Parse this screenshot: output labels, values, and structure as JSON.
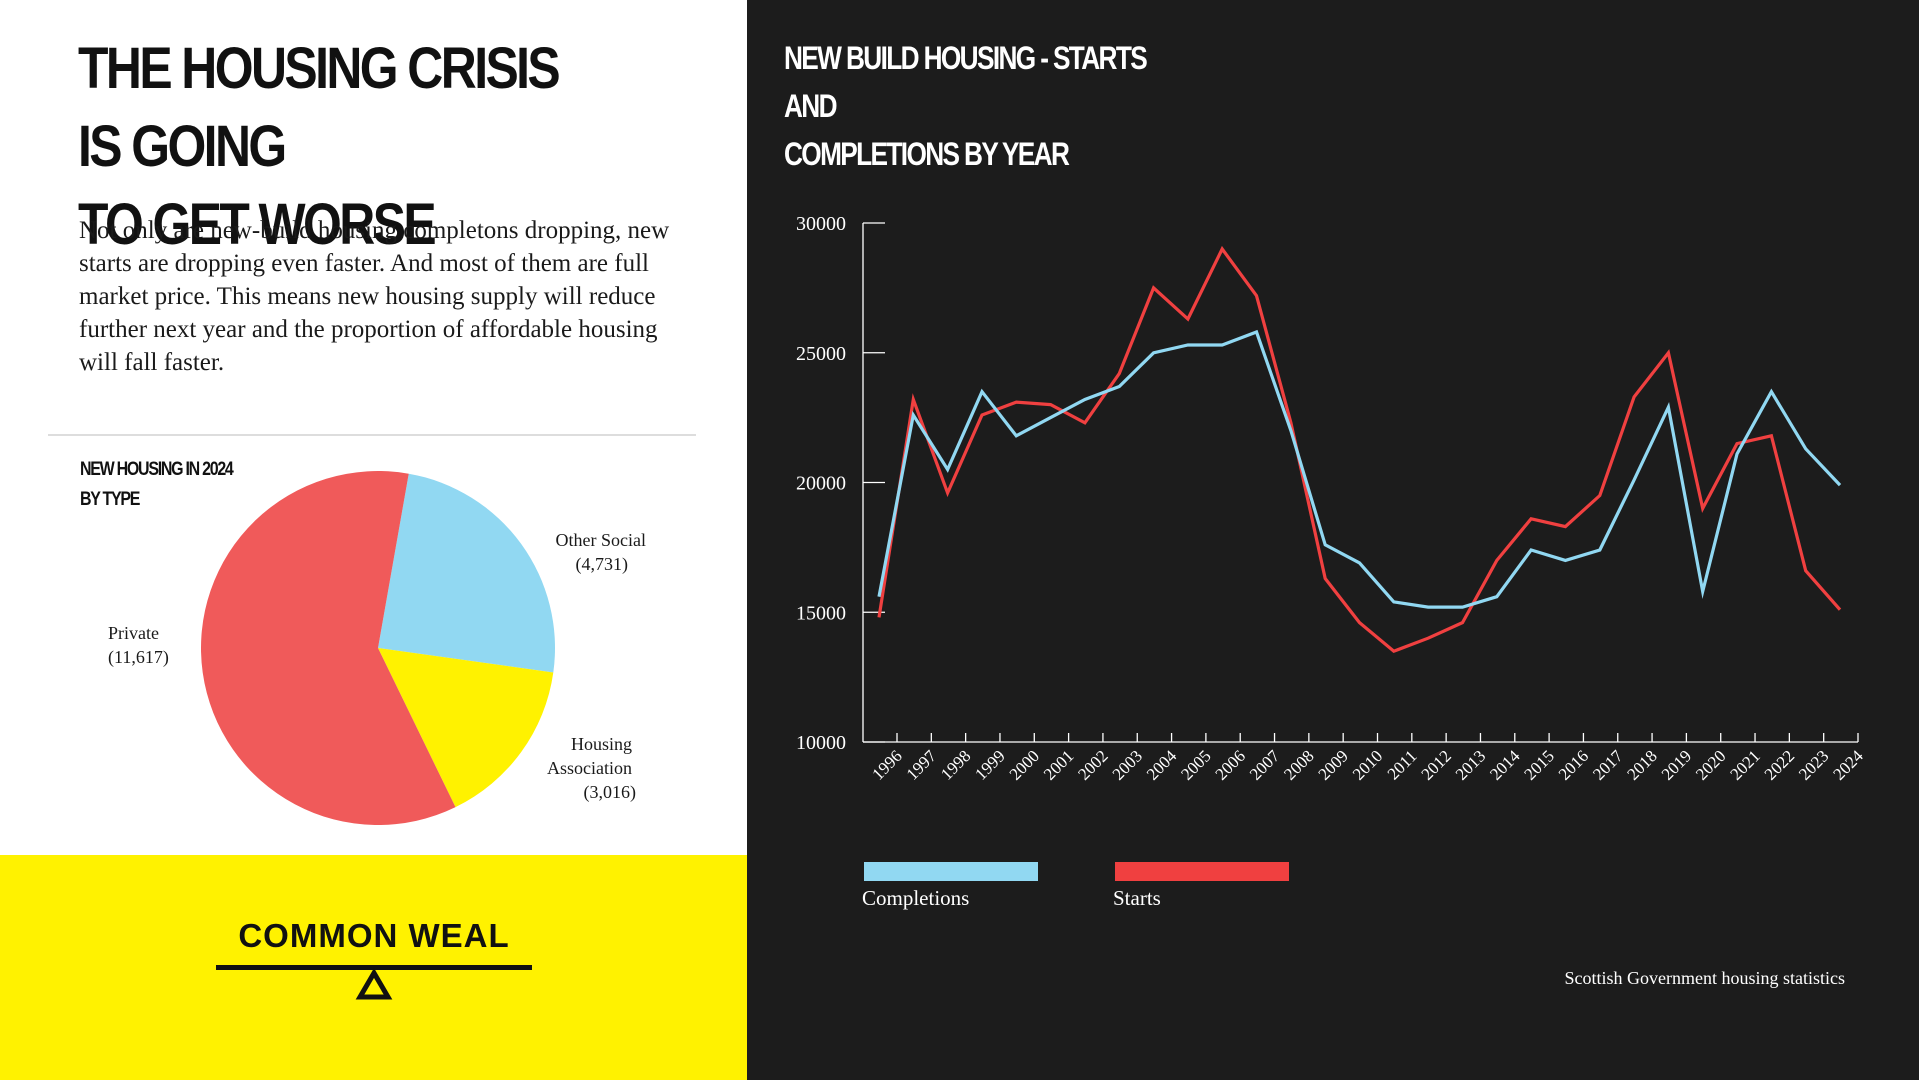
{
  "left": {
    "headline_line1": "THE HOUSING CRISIS IS GOING",
    "headline_line2": "TO GET WORSE",
    "intro": "Not only are new-build housing completons dropping, new starts are dropping even faster. And most of them are full market price. This means new housing supply will reduce further next year and the proportion of affordable housing will fall faster."
  },
  "brand": {
    "logo_text": "COMMON WEAL"
  },
  "source": "Scottish Government housing statistics",
  "chart_data": [
    {
      "type": "pie",
      "title_line1": "NEW HOUSING IN 2024",
      "title_line2": "BY TYPE",
      "slices": [
        {
          "name": "Other Social",
          "value": 4731,
          "value_label": "(4,731)",
          "color": "#91d8f2"
        },
        {
          "name": "Housing Association",
          "name_line1": "Housing",
          "name_line2": "Association",
          "value": 3016,
          "value_label": "(3,016)",
          "color": "#fff200"
        },
        {
          "name": "Private",
          "value": 11617,
          "value_label": "(11,617)",
          "color": "#f05a5a"
        }
      ]
    },
    {
      "type": "line",
      "title_line1": "NEW BUILD HOUSING - STARTS AND",
      "title_line2": "COMPLETIONS BY YEAR",
      "x": [
        "1996",
        "1997",
        "1998",
        "1999",
        "2000",
        "2001",
        "2002",
        "2003",
        "2004",
        "2005",
        "2006",
        "2007",
        "2008",
        "2009",
        "2010",
        "2011",
        "2012",
        "2013",
        "2014",
        "2015",
        "2016",
        "2017",
        "2018",
        "2019",
        "2020",
        "2021",
        "2022",
        "2023",
        "2024"
      ],
      "ylim": [
        10000,
        30000
      ],
      "yticks": [
        "10000",
        "15000",
        "20000",
        "25000",
        "30000"
      ],
      "series": [
        {
          "name": "Completions",
          "color": "#91d8f2",
          "values": [
            15600,
            22600,
            20500,
            23500,
            21800,
            22500,
            23200,
            23700,
            25000,
            25300,
            25300,
            25800,
            22000,
            17600,
            16900,
            15400,
            15200,
            15200,
            15600,
            17400,
            17000,
            17400,
            20100,
            22900,
            15800,
            21100,
            23500,
            21300,
            19900
          ]
        },
        {
          "name": "Starts",
          "color": "#f04040",
          "values": [
            14800,
            23200,
            19600,
            22600,
            23100,
            23000,
            22300,
            24200,
            27500,
            26300,
            29000,
            27200,
            22300,
            16300,
            14600,
            13500,
            14000,
            14600,
            17000,
            18600,
            18300,
            19500,
            23300,
            25000,
            19000,
            21500,
            21800,
            16600,
            15100
          ]
        }
      ]
    }
  ]
}
